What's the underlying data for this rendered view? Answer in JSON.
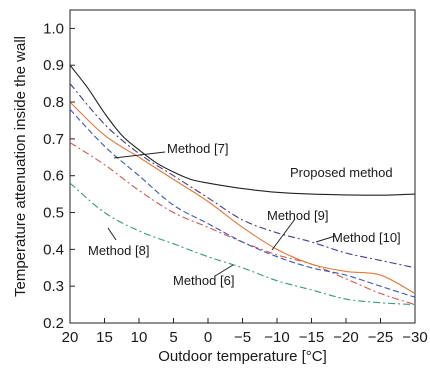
{
  "chart_data": {
    "type": "line",
    "xlabel": "Outdoor temperature [°C]",
    "ylabel": "Temperature attenuation inside the wall",
    "xlim": [
      20,
      -30
    ],
    "ylim": [
      0.2,
      1.05
    ],
    "x_ticks": [
      20,
      15,
      10,
      5,
      0,
      -5,
      -10,
      -15,
      -20,
      -25,
      -30
    ],
    "x_tick_labels": [
      "20",
      "15",
      "10",
      "5",
      "0",
      "−5",
      "−10",
      "−15",
      "−20",
      "−25",
      "−30"
    ],
    "y_ticks": [
      0.2,
      0.3,
      0.4,
      0.5,
      0.6,
      0.7,
      0.8,
      0.9,
      1.0
    ],
    "y_tick_labels": [
      "0.2",
      "0.3",
      "0.4",
      "0.5",
      "0.6",
      "0.7",
      "0.8",
      "0.9",
      "1.0"
    ],
    "grid": false,
    "series": [
      {
        "name": "Proposed method",
        "color": "#222222",
        "dash": "solid",
        "x": [
          20,
          17.5,
          15,
          12.5,
          10,
          7.5,
          5,
          2.5,
          0,
          -5,
          -10,
          -15,
          -20,
          -25,
          -30
        ],
        "y": [
          0.9,
          0.84,
          0.77,
          0.71,
          0.67,
          0.635,
          0.61,
          0.59,
          0.58,
          0.565,
          0.555,
          0.55,
          0.548,
          0.547,
          0.55
        ]
      },
      {
        "name": "Method [6]",
        "color": "#d05a52",
        "dash": "dashdot",
        "x": [
          20,
          15,
          10,
          5,
          0,
          -5,
          -10,
          -15,
          -20,
          -25,
          -30
        ],
        "y": [
          0.69,
          0.63,
          0.56,
          0.5,
          0.46,
          0.42,
          0.385,
          0.36,
          0.32,
          0.28,
          0.25
        ]
      },
      {
        "name": "Method [7]",
        "color": "#e07a3a",
        "dash": "solid",
        "x": [
          20,
          15,
          10,
          5,
          0,
          -5,
          -10,
          -15,
          -20,
          -25,
          -30
        ],
        "y": [
          0.8,
          0.71,
          0.65,
          0.59,
          0.53,
          0.46,
          0.4,
          0.36,
          0.34,
          0.33,
          0.28
        ]
      },
      {
        "name": "Method [8]",
        "color": "#3a9a7a",
        "dash": "dashdot",
        "x": [
          20,
          15,
          10,
          5,
          0,
          -5,
          -10,
          -15,
          -20,
          -25,
          -30
        ],
        "y": [
          0.58,
          0.5,
          0.45,
          0.415,
          0.38,
          0.35,
          0.315,
          0.29,
          0.265,
          0.255,
          0.25
        ]
      },
      {
        "name": "Method [9]",
        "color": "#3a5ab8",
        "dash": "dashed",
        "x": [
          20,
          15,
          10,
          5,
          0,
          -5,
          -10,
          -15,
          -20,
          -25,
          -30
        ],
        "y": [
          0.78,
          0.68,
          0.6,
          0.52,
          0.47,
          0.42,
          0.38,
          0.35,
          0.33,
          0.3,
          0.27
        ]
      },
      {
        "name": "Method [10]",
        "color": "#4a3a8a",
        "dash": "dashdot",
        "x": [
          20,
          15,
          10,
          5,
          0,
          -5,
          -10,
          -15,
          -20,
          -25,
          -30
        ],
        "y": [
          0.85,
          0.74,
          0.66,
          0.6,
          0.54,
          0.48,
          0.445,
          0.42,
          0.39,
          0.37,
          0.35
        ]
      }
    ],
    "annotations": [
      {
        "text": "Method [7]",
        "series": "Method [7]"
      },
      {
        "text": "Proposed method",
        "series": "Proposed method"
      },
      {
        "text": "Method [9]",
        "series": "Method [9]"
      },
      {
        "text": "Method [10]",
        "series": "Method [10]"
      },
      {
        "text": "Method [8]",
        "series": "Method [8]"
      },
      {
        "text": "Method [6]",
        "series": "Method [6]"
      }
    ]
  }
}
